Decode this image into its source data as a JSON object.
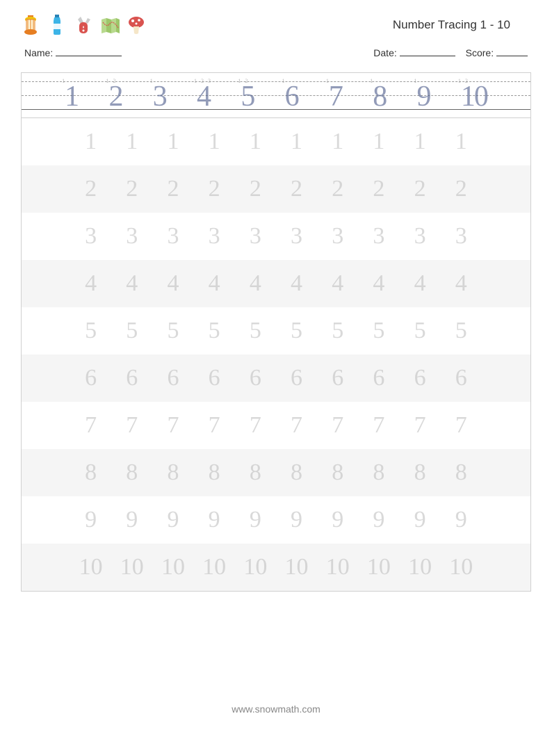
{
  "header": {
    "title": "Number Tracing 1 - 10",
    "icons": [
      "lantern",
      "water-bottle",
      "swiss-knife",
      "map",
      "mushroom"
    ]
  },
  "info": {
    "name_label": "Name:",
    "date_label": "Date:",
    "score_label": "Score:"
  },
  "guide_row": {
    "numbers": [
      "1",
      "2",
      "3",
      "4",
      "5",
      "6",
      "7",
      "8",
      "9",
      "10"
    ],
    "stroke_hints": [
      [
        "1"
      ],
      [
        "1",
        "2"
      ],
      [
        "1"
      ],
      [
        "1",
        "2",
        "3"
      ],
      [
        "1",
        "2"
      ],
      [
        "1"
      ],
      [
        "1"
      ],
      [
        "1"
      ],
      [
        "1"
      ],
      [
        "1",
        "2"
      ]
    ],
    "number_color": "#4a5a8a",
    "baseline_color": "#999999",
    "solid_baseline_color": "#666666"
  },
  "practice_rows": [
    {
      "number": "1",
      "repeat": 10
    },
    {
      "number": "2",
      "repeat": 10
    },
    {
      "number": "3",
      "repeat": 10
    },
    {
      "number": "4",
      "repeat": 10
    },
    {
      "number": "5",
      "repeat": 10
    },
    {
      "number": "6",
      "repeat": 10
    },
    {
      "number": "7",
      "repeat": 10
    },
    {
      "number": "8",
      "repeat": 10
    },
    {
      "number": "9",
      "repeat": 10
    },
    {
      "number": "10",
      "repeat": 10
    }
  ],
  "footer": {
    "url": "www.snowmath.com"
  },
  "styles": {
    "page_bg": "#ffffff",
    "alt_row_bg": "#f5f5f5",
    "trace_number_color": "#bbbbbb",
    "trace_font_size": 34,
    "guide_font_size": 42,
    "border_color": "#d0d0d0",
    "text_color": "#333333",
    "icon_colors": {
      "lantern": {
        "body": "#e67e22",
        "top": "#f1c40f",
        "glass": "#fef5d6"
      },
      "water_bottle": {
        "body": "#3cb4e7",
        "cap": "#2a82b5",
        "label": "#ffffff"
      },
      "swiss_knife": {
        "handle": "#d9534f",
        "blade": "#cccccc"
      },
      "map": {
        "fold1": "#b8d98e",
        "fold2": "#9dc76a",
        "line": "#d9534f"
      },
      "mushroom": {
        "cap": "#d9534f",
        "spots": "#ffffff",
        "stem": "#f5e6c8"
      }
    }
  }
}
